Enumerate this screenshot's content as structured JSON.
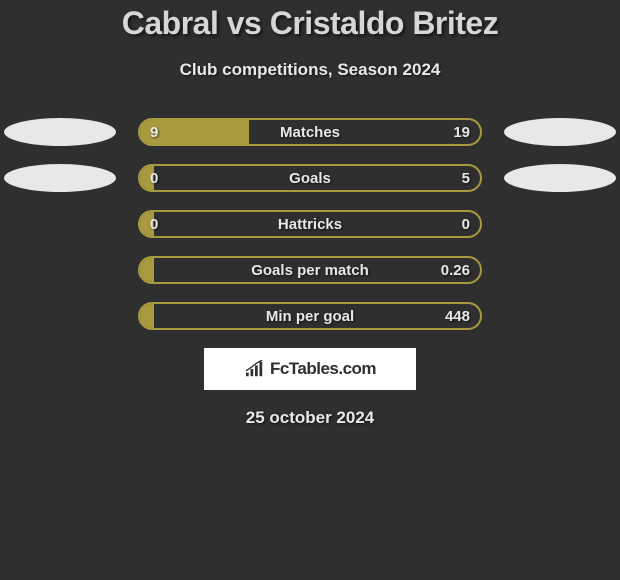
{
  "title": "Cabral vs Cristaldo Britez",
  "subtitle": "Club competitions, Season 2024",
  "date": "25 october 2024",
  "badge_text": "FcTables.com",
  "colors": {
    "background": "#2f2f2f",
    "bar_border": "#a89a3e",
    "bar_fill": "#a89a3e",
    "text": "#e8e8e8",
    "ellipse": "#e8e8e8",
    "badge_bg": "#ffffff",
    "badge_text": "#2f2f2f"
  },
  "stats": [
    {
      "label": "Matches",
      "left_value": "9",
      "right_value": "19",
      "fill_percent": 32,
      "show_ellipses": true
    },
    {
      "label": "Goals",
      "left_value": "0",
      "right_value": "5",
      "fill_percent": 4,
      "show_ellipses": true
    },
    {
      "label": "Hattricks",
      "left_value": "0",
      "right_value": "0",
      "fill_percent": 4,
      "show_ellipses": false
    },
    {
      "label": "Goals per match",
      "left_value": "",
      "right_value": "0.26",
      "fill_percent": 4,
      "show_ellipses": false
    },
    {
      "label": "Min per goal",
      "left_value": "",
      "right_value": "448",
      "fill_percent": 4,
      "show_ellipses": false
    }
  ]
}
